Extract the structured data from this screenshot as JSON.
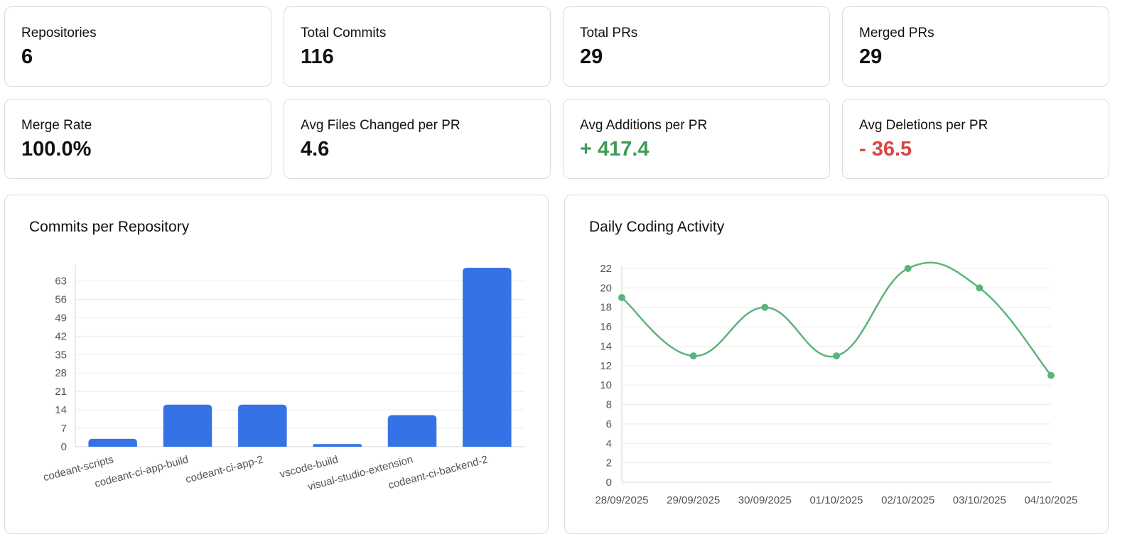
{
  "stats": [
    {
      "label": "Repositories",
      "value": "6",
      "tone": "neutral"
    },
    {
      "label": "Total Commits",
      "value": "116",
      "tone": "neutral"
    },
    {
      "label": "Total PRs",
      "value": "29",
      "tone": "neutral"
    },
    {
      "label": "Merged PRs",
      "value": "29",
      "tone": "neutral"
    },
    {
      "label": "Merge Rate",
      "value": "100.0%",
      "tone": "neutral"
    },
    {
      "label": "Avg Files Changed per PR",
      "value": "4.6",
      "tone": "neutral"
    },
    {
      "label": "Avg Additions per PR",
      "value": "+ 417.4",
      "tone": "positive"
    },
    {
      "label": "Avg Deletions per PR",
      "value": "- 36.5",
      "tone": "negative"
    }
  ],
  "colors": {
    "neutral": "#111111",
    "positive": "#3f9b55",
    "negative": "#d9463f",
    "bar": "#3572e6",
    "line": "#5ab57a",
    "grid": "#ececec",
    "tick": "#555555"
  },
  "chart_data": [
    {
      "type": "bar",
      "title": "Commits per Repository",
      "categories": [
        "codeant-scripts",
        "codeant-ci-app-build",
        "codeant-ci-app-2",
        "vscode-build",
        "visual-studio-extension",
        "codeant-ci-backend-2"
      ],
      "values": [
        3,
        16,
        16,
        1,
        12,
        68
      ],
      "yticks": [
        0,
        7,
        14,
        21,
        28,
        35,
        42,
        49,
        56,
        63
      ],
      "ylim": [
        0,
        68
      ],
      "xlabel": "",
      "ylabel": "",
      "grid": true
    },
    {
      "type": "line",
      "title": "Daily Coding Activity",
      "x": [
        "28/09/2025",
        "29/09/2025",
        "30/09/2025",
        "01/10/2025",
        "02/10/2025",
        "03/10/2025",
        "04/10/2025"
      ],
      "values": [
        19,
        13,
        18,
        13,
        22,
        20,
        11
      ],
      "yticks": [
        0,
        2,
        4,
        6,
        8,
        10,
        12,
        14,
        16,
        18,
        20,
        22
      ],
      "ylim": [
        0,
        22
      ],
      "xlabel": "",
      "ylabel": "",
      "grid": true
    }
  ]
}
